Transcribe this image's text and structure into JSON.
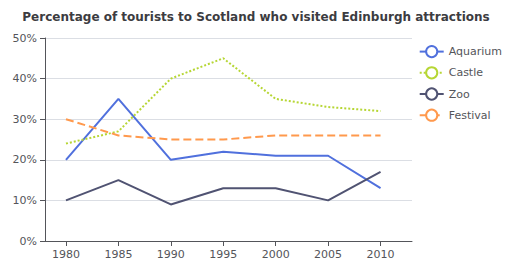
{
  "chart_data": {
    "type": "line",
    "title": "Percentage of tourists to Scotland who visited Edinburgh attractions",
    "x": [
      1980,
      1985,
      1990,
      1995,
      2000,
      2005,
      2010
    ],
    "series": [
      {
        "name": "Aquarium",
        "values": [
          20,
          35,
          20,
          22,
          21,
          21,
          13
        ],
        "line_style": "solid"
      },
      {
        "name": "Castle",
        "values": [
          24,
          27,
          40,
          45,
          35,
          33,
          32
        ],
        "line_style": "dotted"
      },
      {
        "name": "Zoo",
        "values": [
          10,
          15,
          9,
          13,
          13,
          10,
          17
        ],
        "line_style": "solid"
      },
      {
        "name": "Festival",
        "values": [
          30,
          26,
          25,
          25,
          26,
          26,
          26
        ],
        "line_style": "dashed"
      }
    ],
    "xlim": [
      1978,
      2013
    ],
    "xticks": [
      1980,
      1985,
      1990,
      1995,
      2000,
      2005,
      2010
    ],
    "ylim": [
      0,
      50
    ],
    "yticks": [
      {
        "value": 0,
        "label": "0%"
      },
      {
        "value": 10,
        "label": "10%"
      },
      {
        "value": 20,
        "label": "20%"
      },
      {
        "value": 30,
        "label": "30%"
      },
      {
        "value": 40,
        "label": "40%"
      },
      {
        "value": 50,
        "label": "50%"
      }
    ],
    "grid": true,
    "legend": "upper right"
  }
}
